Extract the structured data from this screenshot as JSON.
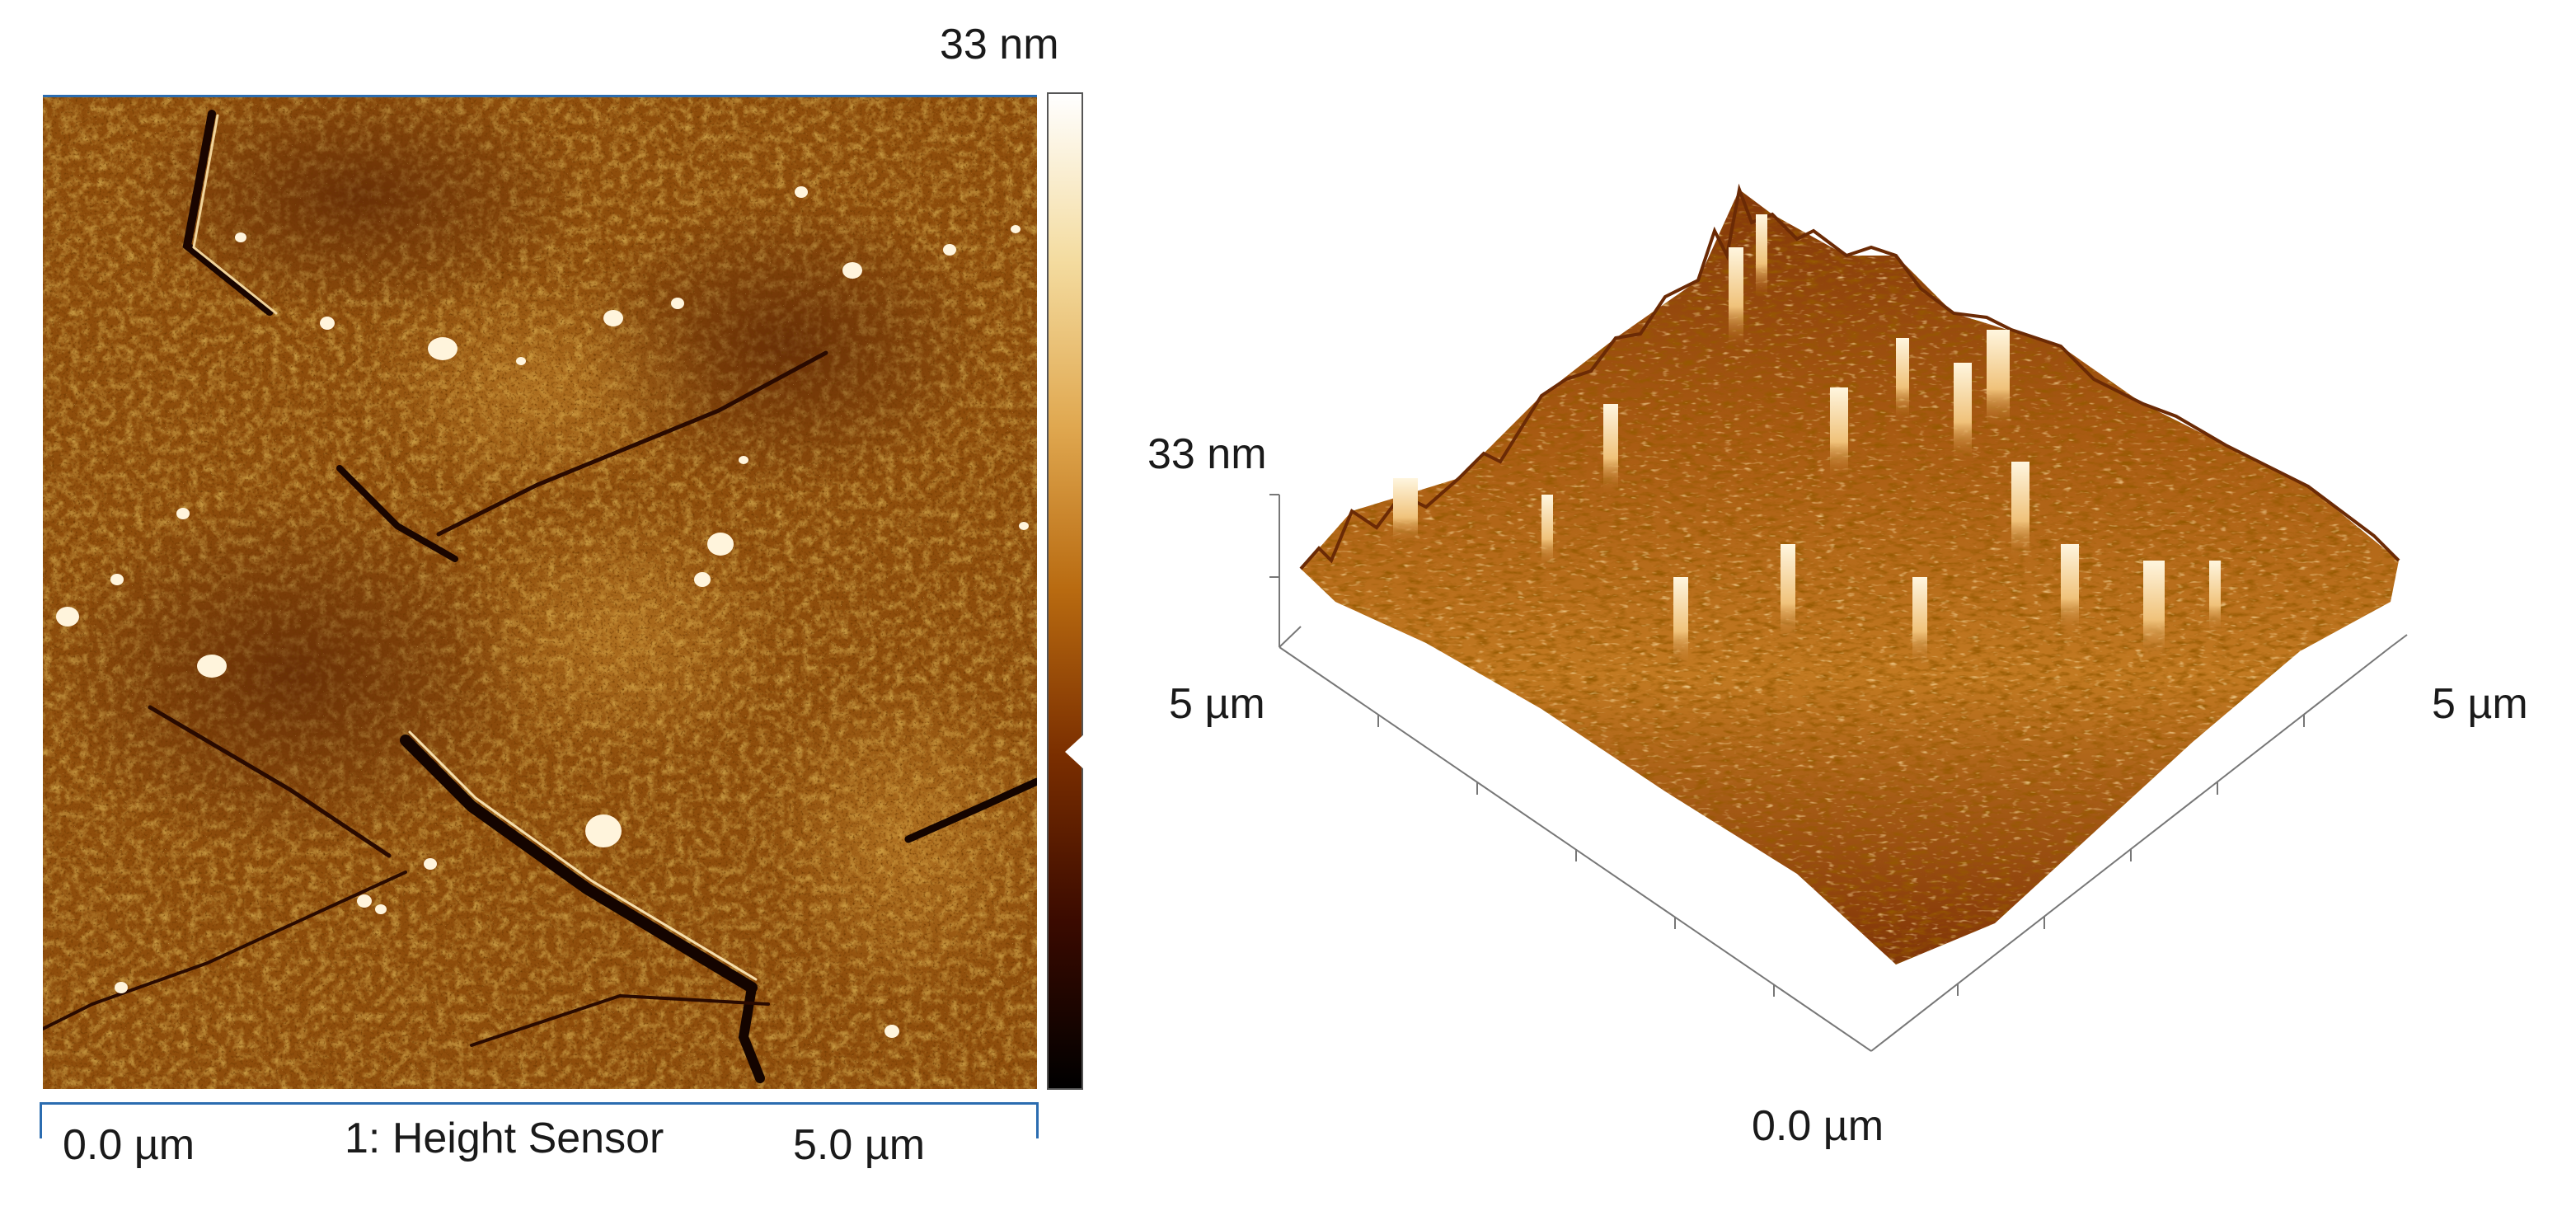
{
  "height_map": {
    "colorbar_max_label": "33 nm",
    "x_start_label": "0.0 µm",
    "x_end_label": "5.0 µm",
    "channel_label": "1: Height Sensor",
    "colormap": [
      "#000000",
      "#3a0a00",
      "#7a2e00",
      "#b86a10",
      "#e0a850",
      "#f4dca0",
      "#ffffff"
    ]
  },
  "surface_3d": {
    "z_label": "33 nm",
    "left_axis_label": "5 µm",
    "right_axis_label": "5 µm",
    "origin_label": "0.0 µm"
  }
}
